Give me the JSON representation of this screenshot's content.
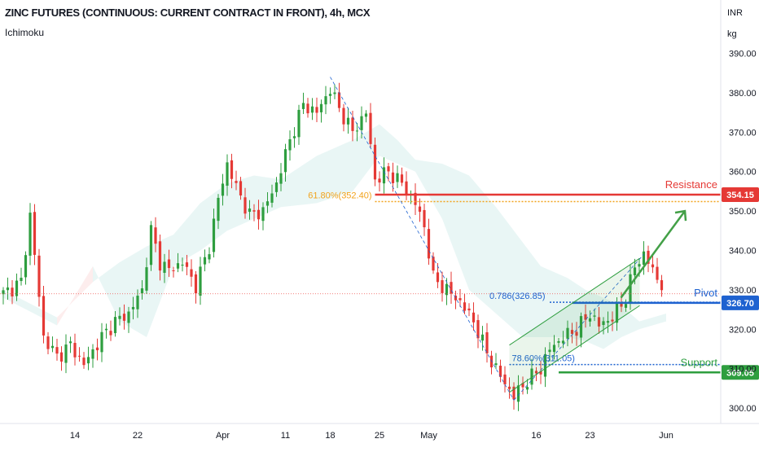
{
  "header": {
    "title": "ZINC FUTURES (CONTINUOUS: CURRENT CONTRACT IN FRONT), 4h, MCX",
    "indicator": "Ichimoku",
    "currency": "INR",
    "unit": "kg"
  },
  "colors": {
    "bull": "#26a69a",
    "bear": "#ef5350",
    "up_candle": "#2e9e3f",
    "down_candle": "#e53935",
    "resistance": "#e53935",
    "pivot": "#1e62d0",
    "support": "#2e9e3f",
    "fib": "#f2a31d",
    "channel": "#2e9e3f"
  },
  "chart_data": {
    "type": "candlestick",
    "timeframe": "4h",
    "ylim": [
      295,
      395
    ],
    "y_ticks": [
      300,
      310,
      320,
      330,
      340,
      350,
      360,
      370,
      380,
      390
    ],
    "y_tick_labels": [
      "300.00",
      "310.00",
      "320.00",
      "330.00",
      "340.00",
      "350.00",
      "360.00",
      "370.00",
      "380.00",
      "390.00"
    ],
    "x_tick_labels": [
      "14",
      "22",
      "Apr",
      "11",
      "18",
      "25",
      "May",
      "16",
      "23",
      "Jun"
    ],
    "x_tick_index": [
      16,
      30,
      49,
      63,
      73,
      84,
      95,
      119,
      131,
      148
    ],
    "n_bars": 148,
    "close_anchors": [
      [
        0,
        329
      ],
      [
        4,
        332
      ],
      [
        6,
        349
      ],
      [
        9,
        318
      ],
      [
        12,
        313
      ],
      [
        15,
        316
      ],
      [
        18,
        311
      ],
      [
        22,
        318
      ],
      [
        25,
        322
      ],
      [
        28,
        324
      ],
      [
        31,
        330
      ],
      [
        33,
        345
      ],
      [
        35,
        337
      ],
      [
        37,
        335
      ],
      [
        40,
        337
      ],
      [
        43,
        331
      ],
      [
        46,
        341
      ],
      [
        48,
        353
      ],
      [
        50,
        362
      ],
      [
        52,
        356
      ],
      [
        55,
        349
      ],
      [
        58,
        350
      ],
      [
        61,
        357
      ],
      [
        64,
        368
      ],
      [
        67,
        377
      ],
      [
        70,
        375
      ],
      [
        73,
        381
      ],
      [
        75,
        376
      ],
      [
        78,
        370
      ],
      [
        81,
        375
      ],
      [
        83,
        358
      ],
      [
        86,
        360
      ],
      [
        89,
        357
      ],
      [
        92,
        352
      ],
      [
        94,
        346
      ],
      [
        96,
        333
      ],
      [
        99,
        330
      ],
      [
        102,
        327
      ],
      [
        105,
        322
      ],
      [
        108,
        314
      ],
      [
        111,
        308
      ],
      [
        114,
        303
      ],
      [
        117,
        307
      ],
      [
        120,
        310
      ],
      [
        122,
        315
      ],
      [
        125,
        318
      ],
      [
        128,
        320
      ],
      [
        131,
        324
      ],
      [
        133,
        321
      ],
      [
        136,
        323
      ],
      [
        139,
        328
      ],
      [
        141,
        336
      ],
      [
        143,
        339
      ],
      [
        145,
        335
      ],
      [
        147,
        331
      ]
    ],
    "ichimoku_cloud": [
      [
        0,
        330,
        328
      ],
      [
        12,
        323,
        321
      ],
      [
        20,
        332,
        336
      ],
      [
        26,
        337,
        322
      ],
      [
        32,
        341,
        318
      ],
      [
        38,
        344,
        336
      ],
      [
        44,
        352,
        340
      ],
      [
        50,
        357,
        345
      ],
      [
        56,
        359,
        348
      ],
      [
        62,
        358,
        351
      ],
      [
        70,
        364,
        352
      ],
      [
        78,
        368,
        355
      ],
      [
        84,
        372,
        364
      ],
      [
        88,
        368,
        362
      ],
      [
        92,
        363,
        360
      ],
      [
        98,
        362,
        348
      ],
      [
        104,
        359,
        330
      ],
      [
        110,
        351,
        324
      ],
      [
        116,
        342,
        318
      ],
      [
        120,
        336,
        318
      ],
      [
        126,
        333,
        318
      ],
      [
        130,
        330,
        317
      ],
      [
        134,
        328,
        315
      ],
      [
        138,
        326,
        318
      ],
      [
        142,
        322,
        320
      ],
      [
        148,
        324,
        322
      ]
    ],
    "current_price_line": 329,
    "resistance": {
      "label": "Resistance",
      "value": 354.15,
      "value_label": "354.15"
    },
    "pivot": {
      "label": "Pivot",
      "value": 326.7,
      "value_label": "326.70"
    },
    "support": {
      "label": "Support",
      "value": 309.05,
      "value_label": "309.05"
    },
    "fib_levels": [
      {
        "label": "61.80%(352.40)",
        "value": 352.4
      },
      {
        "label": "0.786(326.85)",
        "value": 326.85
      },
      {
        "label": "78.60%(311.05)",
        "value": 311.05
      }
    ],
    "channel": {
      "lower": [
        [
          113,
          304
        ],
        [
          141,
          325
        ]
      ],
      "width": 12
    },
    "arrow": {
      "from": [
        137,
        328
      ],
      "to": [
        150,
        350
      ]
    },
    "grid": false
  }
}
